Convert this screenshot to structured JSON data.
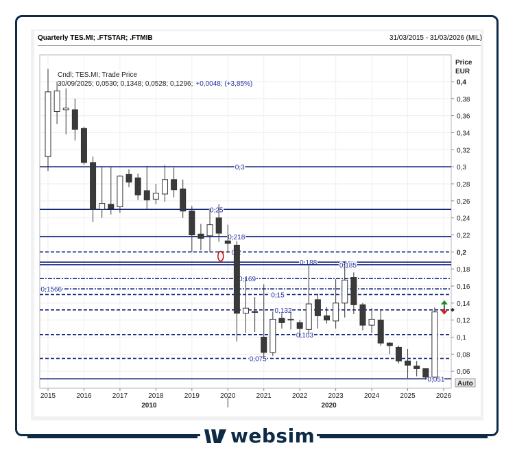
{
  "header": {
    "title": "Quarterly TES.MI; .FTSTAR; .FTMIB",
    "range": "31/03/2015 - 31/03/2026 (MIL)"
  },
  "legend": {
    "line1": "Cndl; TES.MI; Trade Price",
    "line2_values": "30/09/2025; 0,0530; 0,1348; 0,0528; 0,1296;",
    "line2_change": "+0,0048; (+3,85%)"
  },
  "axis": {
    "title_line1": "Price",
    "title_line2": "EUR",
    "auto_label": "Auto"
  },
  "brand": {
    "name": "websim"
  },
  "colors": {
    "up_fill": "#ffffff",
    "down_fill": "#3a3a3a",
    "candle_line": "#333333",
    "level_line": "#0d1f7a",
    "level_label": "#1f2fa0",
    "arrow_up": "#1f8a1f",
    "arrow_down": "#d41f1f",
    "marker_circle": "#cc0000"
  },
  "chart_data": {
    "type": "candlestick",
    "y_unit": "EUR",
    "ylim": [
      0.05,
      0.4
    ],
    "xlim": [
      "2015",
      "2026"
    ],
    "x_ticks": [
      "2015",
      "2016",
      "2017",
      "2018",
      "2019",
      "2020",
      "2021",
      "2022",
      "2023",
      "2024",
      "2025",
      "2026"
    ],
    "x_decade_labels": [
      {
        "x": 2018.0,
        "label": "2010"
      },
      {
        "x": 2023.0,
        "label": "2020"
      }
    ],
    "y_ticks": [
      {
        "value": 0.4,
        "label": "0,4",
        "bold": true
      },
      {
        "value": 0.38,
        "label": "0,38"
      },
      {
        "value": 0.36,
        "label": "0,36"
      },
      {
        "value": 0.34,
        "label": "0,34"
      },
      {
        "value": 0.32,
        "label": "0,32"
      },
      {
        "value": 0.3,
        "label": "0,3"
      },
      {
        "value": 0.28,
        "label": "0,28"
      },
      {
        "value": 0.26,
        "label": "0,26"
      },
      {
        "value": 0.24,
        "label": "0,24"
      },
      {
        "value": 0.22,
        "label": "0,22"
      },
      {
        "value": 0.2,
        "label": "0,2",
        "bold": true
      },
      {
        "value": 0.18,
        "label": "0,18"
      },
      {
        "value": 0.16,
        "label": "0,16"
      },
      {
        "value": 0.14,
        "label": "0,14"
      },
      {
        "value": 0.12,
        "label": "0,12"
      },
      {
        "value": 0.1,
        "label": "0,1"
      },
      {
        "value": 0.08,
        "label": "0,08"
      },
      {
        "value": 0.06,
        "label": "0,06"
      }
    ],
    "candles": [
      {
        "t": 2015.0,
        "o": 0.312,
        "h": 0.415,
        "l": 0.295,
        "c": 0.388
      },
      {
        "t": 2015.25,
        "o": 0.365,
        "h": 0.4,
        "l": 0.35,
        "c": 0.389
      },
      {
        "t": 2015.5,
        "o": 0.367,
        "h": 0.392,
        "l": 0.338,
        "c": 0.369
      },
      {
        "t": 2015.75,
        "o": 0.367,
        "h": 0.38,
        "l": 0.331,
        "c": 0.344
      },
      {
        "t": 2016.0,
        "o": 0.345,
        "h": 0.347,
        "l": 0.302,
        "c": 0.305
      },
      {
        "t": 2016.25,
        "o": 0.305,
        "h": 0.312,
        "l": 0.235,
        "c": 0.25
      },
      {
        "t": 2016.5,
        "o": 0.25,
        "h": 0.3,
        "l": 0.24,
        "c": 0.257
      },
      {
        "t": 2016.75,
        "o": 0.256,
        "h": 0.3,
        "l": 0.244,
        "c": 0.251
      },
      {
        "t": 2017.0,
        "o": 0.253,
        "h": 0.29,
        "l": 0.246,
        "c": 0.289
      },
      {
        "t": 2017.25,
        "o": 0.291,
        "h": 0.297,
        "l": 0.276,
        "c": 0.282
      },
      {
        "t": 2017.5,
        "o": 0.287,
        "h": 0.292,
        "l": 0.261,
        "c": 0.267
      },
      {
        "t": 2017.75,
        "o": 0.272,
        "h": 0.301,
        "l": 0.25,
        "c": 0.261
      },
      {
        "t": 2018.0,
        "o": 0.262,
        "h": 0.28,
        "l": 0.256,
        "c": 0.269
      },
      {
        "t": 2018.25,
        "o": 0.268,
        "h": 0.302,
        "l": 0.259,
        "c": 0.285
      },
      {
        "t": 2018.5,
        "o": 0.285,
        "h": 0.299,
        "l": 0.264,
        "c": 0.273
      },
      {
        "t": 2018.75,
        "o": 0.274,
        "h": 0.285,
        "l": 0.24,
        "c": 0.248
      },
      {
        "t": 2019.0,
        "o": 0.248,
        "h": 0.254,
        "l": 0.2,
        "c": 0.22
      },
      {
        "t": 2019.25,
        "o": 0.221,
        "h": 0.233,
        "l": 0.202,
        "c": 0.216
      },
      {
        "t": 2019.5,
        "o": 0.219,
        "h": 0.251,
        "l": 0.2,
        "c": 0.232
      },
      {
        "t": 2019.75,
        "o": 0.24,
        "h": 0.256,
        "l": 0.212,
        "c": 0.222
      },
      {
        "t": 2020.0,
        "o": 0.213,
        "h": 0.232,
        "l": 0.199,
        "c": 0.21
      },
      {
        "t": 2020.25,
        "o": 0.208,
        "h": 0.213,
        "l": 0.095,
        "c": 0.128
      },
      {
        "t": 2020.5,
        "o": 0.128,
        "h": 0.17,
        "l": 0.105,
        "c": 0.134
      },
      {
        "t": 2020.75,
        "o": 0.13,
        "h": 0.147,
        "l": 0.106,
        "c": 0.129
      },
      {
        "t": 2021.0,
        "o": 0.1,
        "h": 0.162,
        "l": 0.075,
        "c": 0.082
      },
      {
        "t": 2021.25,
        "o": 0.082,
        "h": 0.13,
        "l": 0.078,
        "c": 0.121
      },
      {
        "t": 2021.5,
        "o": 0.122,
        "h": 0.128,
        "l": 0.11,
        "c": 0.117
      },
      {
        "t": 2021.75,
        "o": 0.12,
        "h": 0.13,
        "l": 0.109,
        "c": 0.121
      },
      {
        "t": 2022.0,
        "o": 0.117,
        "h": 0.12,
        "l": 0.1,
        "c": 0.11
      },
      {
        "t": 2022.25,
        "o": 0.109,
        "h": 0.184,
        "l": 0.103,
        "c": 0.139
      },
      {
        "t": 2022.5,
        "o": 0.144,
        "h": 0.151,
        "l": 0.11,
        "c": 0.125
      },
      {
        "t": 2022.75,
        "o": 0.125,
        "h": 0.135,
        "l": 0.116,
        "c": 0.12
      },
      {
        "t": 2023.0,
        "o": 0.119,
        "h": 0.168,
        "l": 0.11,
        "c": 0.14
      },
      {
        "t": 2023.25,
        "o": 0.14,
        "h": 0.189,
        "l": 0.123,
        "c": 0.167
      },
      {
        "t": 2023.5,
        "o": 0.17,
        "h": 0.176,
        "l": 0.127,
        "c": 0.138
      },
      {
        "t": 2023.75,
        "o": 0.138,
        "h": 0.14,
        "l": 0.108,
        "c": 0.114
      },
      {
        "t": 2024.0,
        "o": 0.114,
        "h": 0.134,
        "l": 0.105,
        "c": 0.121
      },
      {
        "t": 2024.25,
        "o": 0.12,
        "h": 0.132,
        "l": 0.09,
        "c": 0.093
      },
      {
        "t": 2024.5,
        "o": 0.093,
        "h": 0.094,
        "l": 0.08,
        "c": 0.09
      },
      {
        "t": 2024.75,
        "o": 0.088,
        "h": 0.09,
        "l": 0.069,
        "c": 0.072
      },
      {
        "t": 2025.0,
        "o": 0.072,
        "h": 0.086,
        "l": 0.052,
        "c": 0.067
      },
      {
        "t": 2025.25,
        "o": 0.066,
        "h": 0.072,
        "l": 0.054,
        "c": 0.063
      },
      {
        "t": 2025.5,
        "o": 0.063,
        "h": 0.063,
        "l": 0.05,
        "c": 0.053
      },
      {
        "t": 2025.75,
        "o": 0.053,
        "h": 0.1348,
        "l": 0.0528,
        "c": 0.1296
      }
    ],
    "levels": [
      {
        "value": 0.3,
        "label": "0,3",
        "style": "solid",
        "label_x": 2020.2
      },
      {
        "value": 0.25,
        "label": "0,25",
        "style": "solid",
        "label_x": 2019.5
      },
      {
        "value": 0.218,
        "label": "0,218",
        "style": "solid",
        "label_x": 2020.0
      },
      {
        "value": 0.2,
        "label": "0,2",
        "style": "dashed",
        "label_x": 2020.1
      },
      {
        "value": 0.188,
        "label": "0,188",
        "style": "solid",
        "label_x": 2022.0
      },
      {
        "value": 0.185,
        "label": "0,185",
        "style": "solid",
        "label_x": 2023.1
      },
      {
        "value": 0.169,
        "label": "0,169",
        "style": "dashdot",
        "label_x": 2020.3
      },
      {
        "value": 0.1566,
        "label": "0,1566",
        "style": "dashdot",
        "label_x": 2014.8
      },
      {
        "value": 0.15,
        "label": "0,15",
        "style": "dashed",
        "label_x": 2021.2
      },
      {
        "value": 0.132,
        "label": "0,132",
        "style": "dashed",
        "label_x": 2021.3
      },
      {
        "value": 0.103,
        "label": "0,103",
        "style": "dashed",
        "label_x": 2021.9
      },
      {
        "value": 0.075,
        "label": "0,075",
        "style": "dashed",
        "label_x": 2020.6
      },
      {
        "value": 0.051,
        "label": "0,051",
        "style": "solid",
        "label_x": 2025.55
      }
    ]
  }
}
